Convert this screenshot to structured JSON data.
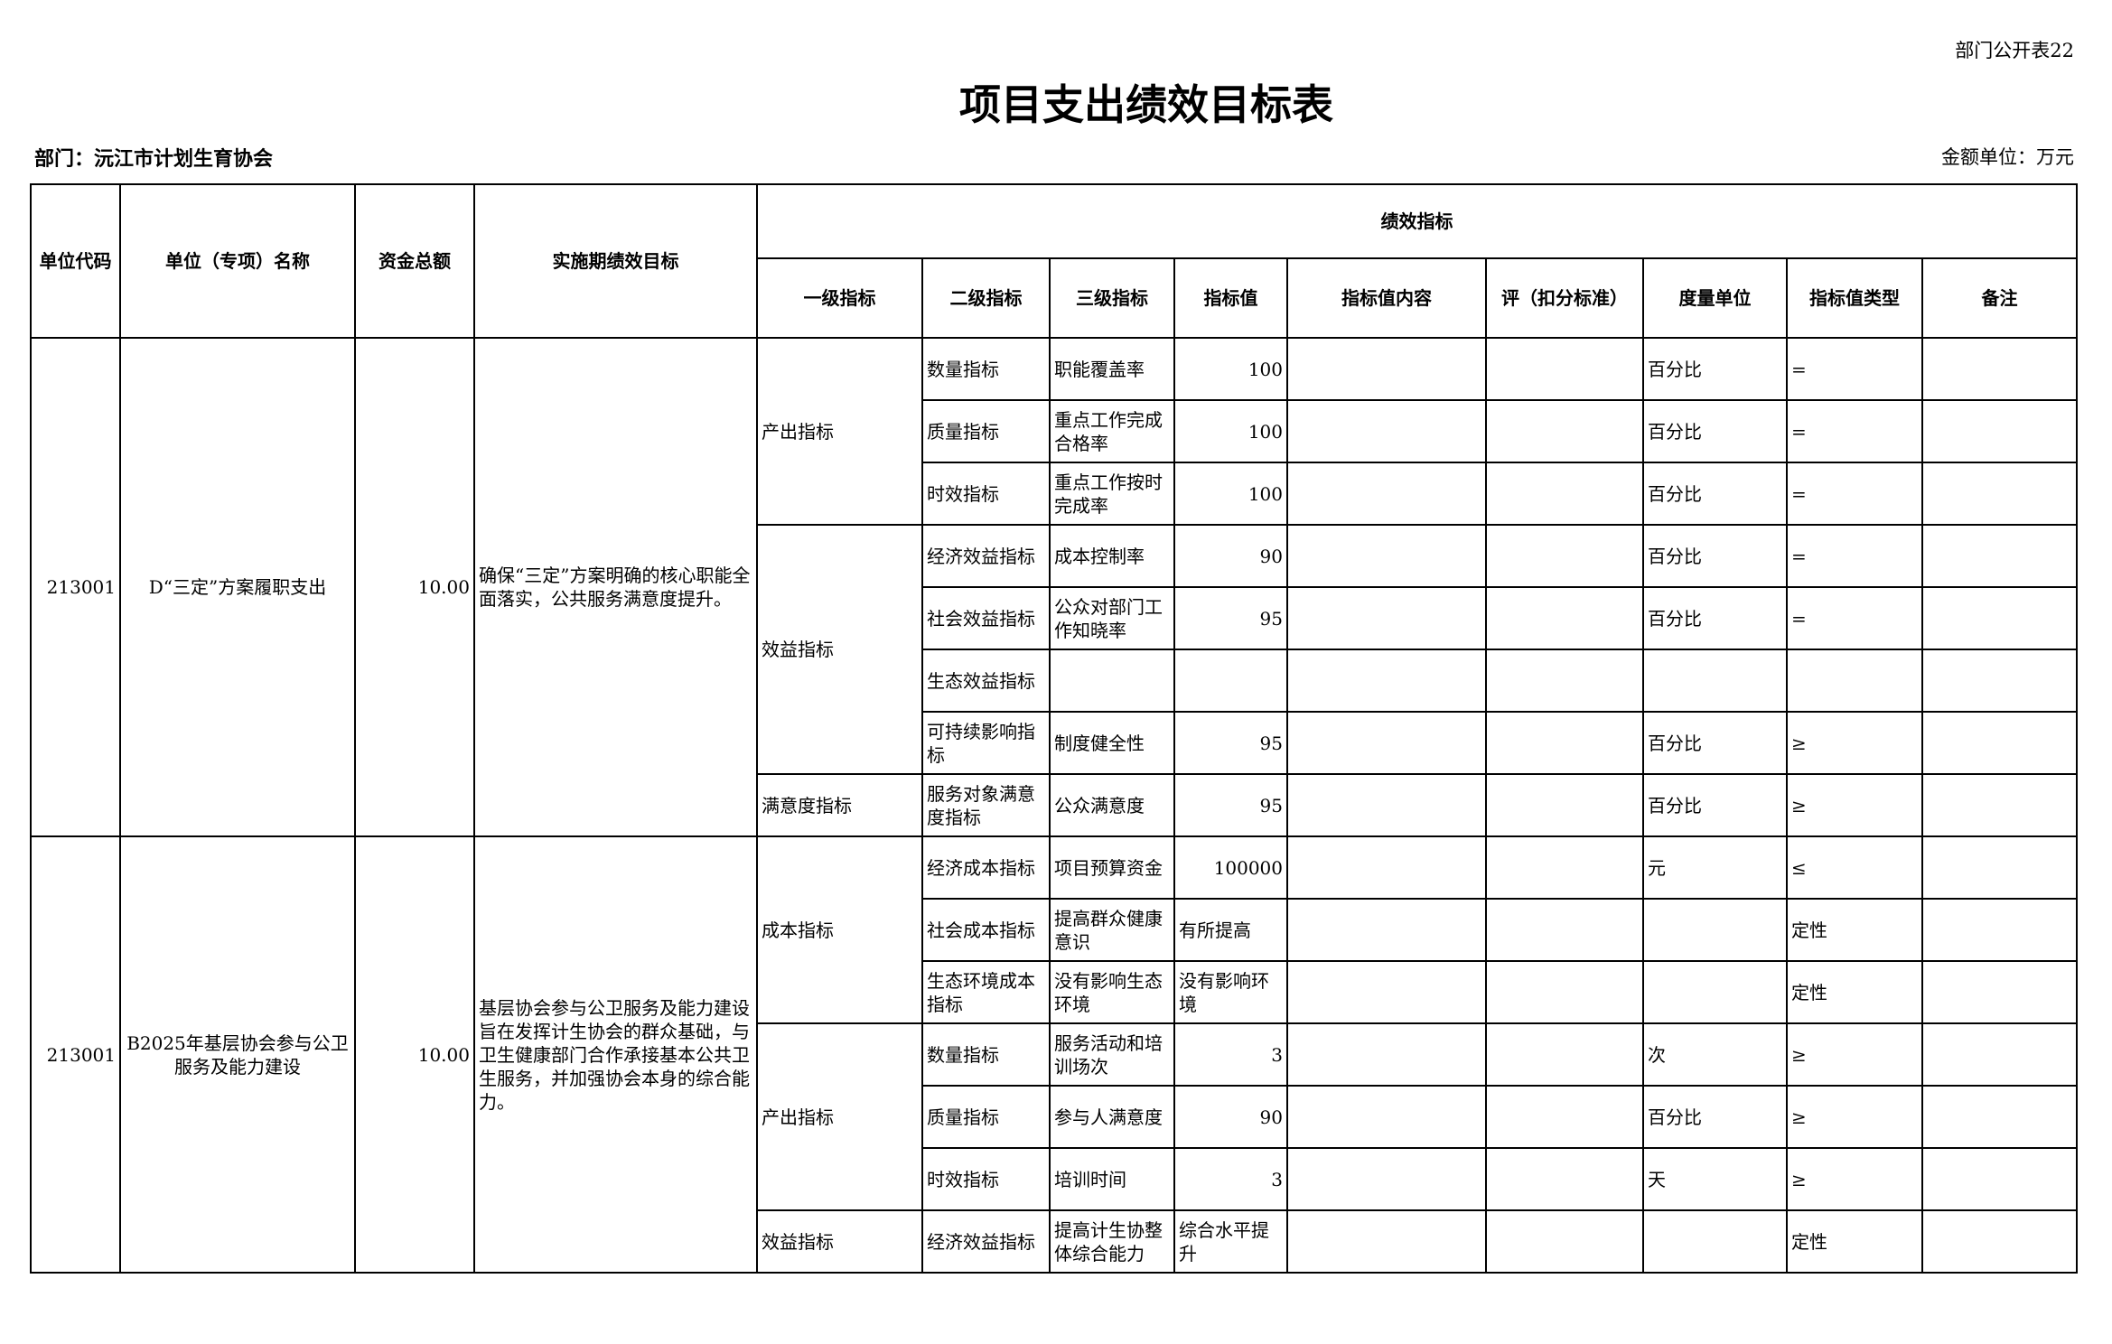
{
  "header": {
    "form_no": "部门公开表22",
    "title": "项目支出绩效目标表",
    "department": "部门：沅江市计划生育协会",
    "amount_unit": "金额单位：万元"
  },
  "columns": {
    "code": "单位代码",
    "name": "单位（专项）名称",
    "total": "资金总额",
    "goal": "实施期绩效目标",
    "perf": "绩效指标",
    "level1": "一级指标",
    "level2": "二级指标",
    "level3": "三级指标",
    "value": "指标值",
    "value_content": "指标值内容",
    "scoring": "评（扣分标准）",
    "unit": "度量单位",
    "value_type": "指标值类型",
    "remark": "备注"
  },
  "projects": [
    {
      "code": "213001",
      "name": "D“三定”方案履职支出",
      "total": "10.00",
      "goal": "确保“三定”方案明确的核心职能全面落实，公共服务满意度提升。",
      "groups": [
        {
          "level1": "产出指标",
          "rows": [
            {
              "level2": "数量指标",
              "level3": "职能覆盖率",
              "value": "100",
              "value_content": "",
              "unit": "百分比",
              "value_type": "="
            },
            {
              "level2": "质量指标",
              "level3": "重点工作完成合格率",
              "value": "100",
              "value_content": "",
              "unit": "百分比",
              "value_type": "="
            },
            {
              "level2": "时效指标",
              "level3": "重点工作按时完成率",
              "value": "100",
              "value_content": "",
              "unit": "百分比",
              "value_type": "="
            }
          ]
        },
        {
          "level1": "效益指标",
          "rows": [
            {
              "level2": "经济效益指标",
              "level3": "成本控制率",
              "value": "90",
              "value_content": "",
              "unit": "百分比",
              "value_type": "="
            },
            {
              "level2": "社会效益指标",
              "level3": "公众对部门工作知晓率",
              "value": "95",
              "value_content": "",
              "unit": "百分比",
              "value_type": "="
            },
            {
              "level2": "生态效益指标",
              "level3": "",
              "value": "",
              "value_content": "",
              "unit": "",
              "value_type": ""
            },
            {
              "level2": "可持续影响指标",
              "level3": "制度健全性",
              "value": "95",
              "value_content": "",
              "unit": "百分比",
              "value_type": "≥"
            }
          ]
        },
        {
          "level1": "满意度指标",
          "rows": [
            {
              "level2": "服务对象满意度指标",
              "level3": "公众满意度",
              "value": "95",
              "value_content": "",
              "unit": "百分比",
              "value_type": "≥"
            }
          ]
        }
      ]
    },
    {
      "code": "213001",
      "name": "B2025年基层协会参与公卫服务及能力建设",
      "total": "10.00",
      "goal": "基层协会参与公卫服务及能力建设旨在发挥计生协会的群众基础，与卫生健康部门合作承接基本公共卫生服务，并加强协会本身的综合能力。",
      "groups": [
        {
          "level1": "成本指标",
          "rows": [
            {
              "level2": "经济成本指标",
              "level3": "项目预算资金",
              "value": "100000",
              "value_content": "",
              "unit": "元",
              "value_type": "≤"
            },
            {
              "level2": "社会成本指标",
              "level3": "提高群众健康意识",
              "value": "有所提高",
              "value_content": "",
              "unit": "",
              "value_type": "定性"
            },
            {
              "level2": "生态环境成本指标",
              "level3": "没有影响生态环境",
              "value": "没有影响环境",
              "value_content": "",
              "unit": "",
              "value_type": "定性"
            }
          ]
        },
        {
          "level1": "产出指标",
          "rows": [
            {
              "level2": "数量指标",
              "level3": "服务活动和培训场次",
              "value": "3",
              "value_content": "",
              "unit": "次",
              "value_type": "≥"
            },
            {
              "level2": "质量指标",
              "level3": "参与人满意度",
              "value": "90",
              "value_content": "",
              "unit": "百分比",
              "value_type": "≥"
            },
            {
              "level2": "时效指标",
              "level3": "培训时间",
              "value": "3",
              "value_content": "",
              "unit": "天",
              "value_type": "≥"
            }
          ]
        },
        {
          "level1": "效益指标",
          "rows": [
            {
              "level2": "经济效益指标",
              "level3": "提高计生协整体综合能力",
              "value": "综合水平提升",
              "value_content": "",
              "unit": "",
              "value_type": "定性"
            }
          ]
        }
      ]
    }
  ]
}
